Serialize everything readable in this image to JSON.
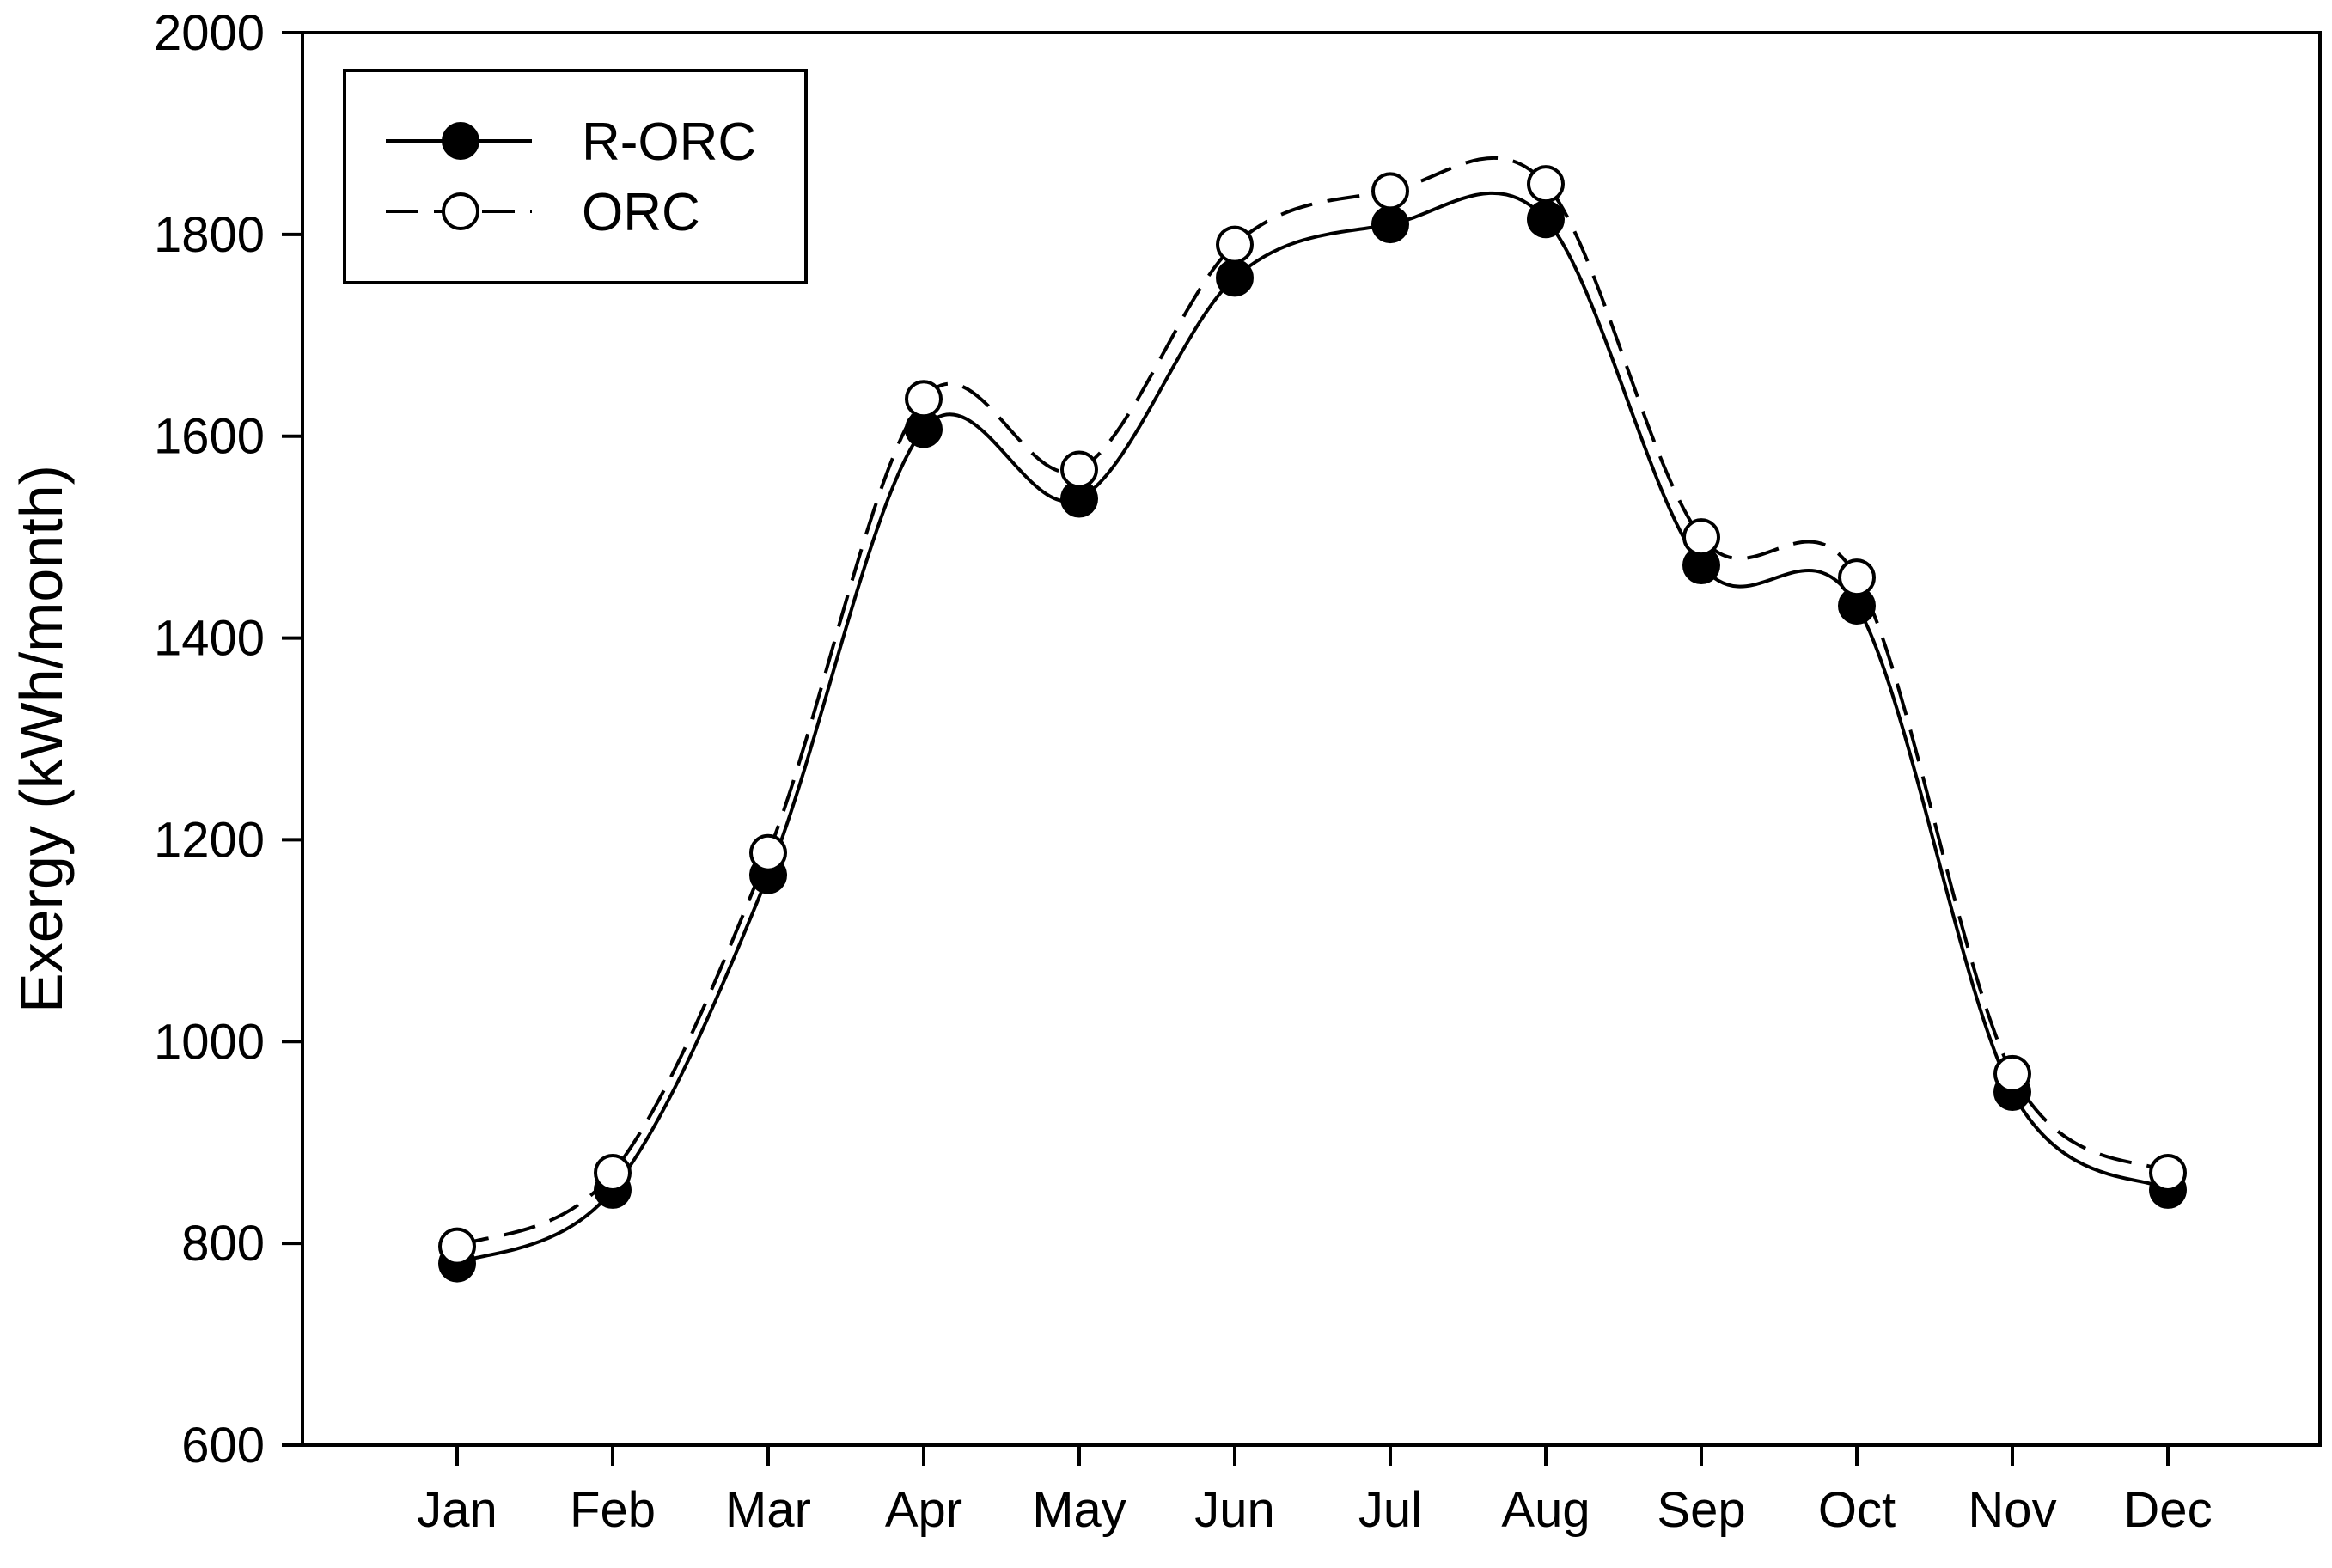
{
  "chart_data": {
    "type": "line",
    "title": "",
    "xlabel": "",
    "ylabel": "Exergy (kWh/month)",
    "categories": [
      "Jan",
      "Feb",
      "Mar",
      "Apr",
      "May",
      "Jun",
      "Jul",
      "Aug",
      "Sep",
      "Oct",
      "Nov",
      "Dec"
    ],
    "ylim": [
      600,
      2000
    ],
    "yticks": [
      600,
      800,
      1000,
      1200,
      1400,
      1600,
      1800,
      2000
    ],
    "grid": false,
    "legend_position": "top-left",
    "series": [
      {
        "name": "R-ORC",
        "marker": "filled-circle",
        "line_style": "solid",
        "color": "#000000",
        "values": [
          780,
          853,
          1165,
          1607,
          1538,
          1757,
          1810,
          1815,
          1472,
          1432,
          950,
          853
        ]
      },
      {
        "name": "ORC",
        "marker": "open-circle",
        "line_style": "dashed",
        "color": "#000000",
        "values": [
          797,
          870,
          1187,
          1637,
          1567,
          1790,
          1843,
          1850,
          1500,
          1460,
          968,
          870
        ]
      }
    ]
  }
}
